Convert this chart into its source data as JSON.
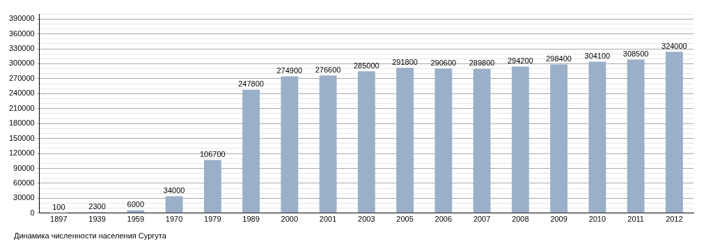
{
  "chart_data": {
    "type": "bar",
    "categories": [
      "1897",
      "1939",
      "1959",
      "1970",
      "1979",
      "1989",
      "2000",
      "2001",
      "2003",
      "2005",
      "2006",
      "2007",
      "2008",
      "2009",
      "2010",
      "2011",
      "2012"
    ],
    "values": [
      100,
      2300,
      6000,
      34000,
      106700,
      247800,
      274900,
      276600,
      285000,
      291800,
      290600,
      289800,
      294200,
      298400,
      304100,
      308500,
      324000
    ],
    "color": "#9ab0c9",
    "ylim": [
      0,
      400000
    ],
    "yticks": [
      0,
      {
        "value": 10000,
        "label": null
      },
      {
        "value": 20000,
        "label": null
      },
      30000,
      {
        "value": 40000,
        "label": null
      },
      {
        "value": 50000,
        "label": null
      },
      60000,
      {
        "value": 70000,
        "label": null
      },
      {
        "value": 80000,
        "label": null
      },
      90000,
      {
        "value": 100000,
        "label": null
      },
      {
        "value": 110000,
        "label": null
      },
      120000,
      {
        "value": 130000,
        "label": null
      },
      {
        "value": 140000,
        "label": null
      },
      150000,
      {
        "value": 160000,
        "label": null
      },
      {
        "value": 170000,
        "label": null
      },
      180000,
      {
        "value": 190000,
        "label": null
      },
      {
        "value": 200000,
        "label": null
      },
      210000,
      {
        "value": 220000,
        "label": null
      },
      {
        "value": 230000,
        "label": null
      },
      240000,
      {
        "value": 250000,
        "label": null
      },
      {
        "value": 260000,
        "label": null
      },
      270000,
      {
        "value": 280000,
        "label": null
      },
      {
        "value": 290000,
        "label": null
      },
      300000,
      {
        "value": 310000,
        "label": null
      },
      {
        "value": 320000,
        "label": null
      },
      330000,
      {
        "value": 340000,
        "label": null
      },
      {
        "value": 350000,
        "label": null
      },
      360000,
      {
        "value": 370000,
        "label": null
      },
      {
        "value": 380000,
        "label": null
      },
      390000,
      {
        "value": 400000,
        "label": null
      }
    ],
    "grid": "y",
    "data_labels": true,
    "annotations": [
      "Динамика численности населения Сургута"
    ]
  }
}
